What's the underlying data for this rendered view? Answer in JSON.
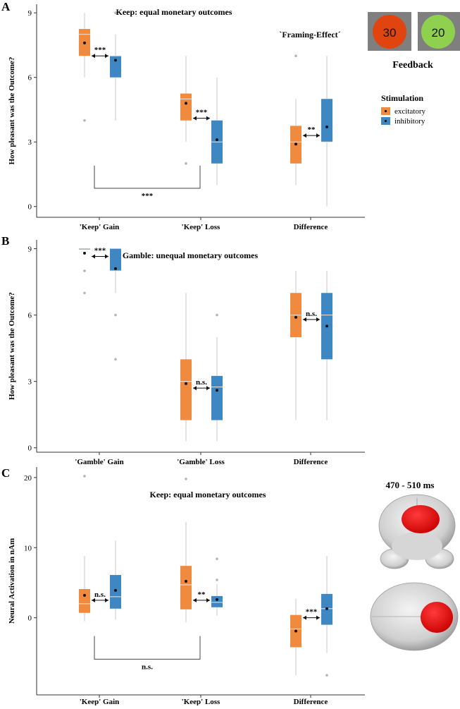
{
  "colors": {
    "excitatory": "#F08A3E",
    "inhibitory": "#3F87C2",
    "feedback_high": "#E0450F",
    "feedback_low": "#8FD14F",
    "feedback_frame": "#7F7F7F",
    "axis": "#333333",
    "outlier": "#B5B5B5"
  },
  "figure": {
    "feedback_label": "Feedback",
    "feedback_values": [
      "30",
      "20"
    ],
    "framing_effect_label": "`Framing-Effect´",
    "legend": {
      "title": "Stimulation",
      "items": [
        "excitatory",
        "inhibitory"
      ]
    },
    "brain_label": "470 - 510 ms"
  },
  "chart_data": [
    {
      "type": "box",
      "panel": "A",
      "title": "Keep: equal monetary outcomes",
      "ylabel": "How pleasant was the Outcome?",
      "ylim": [
        -0.5,
        9.4
      ],
      "yticks": [
        0,
        3,
        6,
        9
      ],
      "categories": [
        "'Keep' Gain",
        "'Keep' Loss",
        "Difference"
      ],
      "series": [
        {
          "name": "excitatory",
          "boxes": [
            {
              "q1": 7,
              "median": 8,
              "q3": 8.25,
              "wlo": 6,
              "whi": 9,
              "mean": 7.6,
              "outliers": [
                4
              ]
            },
            {
              "q1": 4,
              "median": 5,
              "q3": 5.25,
              "wlo": 3,
              "whi": 7,
              "mean": 4.8,
              "outliers": [
                2
              ]
            },
            {
              "q1": 2,
              "median": 3,
              "q3": 3.75,
              "wlo": 1,
              "whi": 5,
              "mean": 2.9,
              "outliers": [
                7
              ]
            }
          ]
        },
        {
          "name": "inhibitory",
          "boxes": [
            {
              "q1": 6,
              "median": 7,
              "q3": 7,
              "wlo": 4,
              "whi": 8,
              "mean": 6.8,
              "outliers": [
                9
              ]
            },
            {
              "q1": 2,
              "median": 3,
              "q3": 4,
              "wlo": 1,
              "whi": 6,
              "mean": 3.1,
              "outliers": []
            },
            {
              "q1": 3,
              "median": 3,
              "q3": 5,
              "wlo": 0,
              "whi": 7,
              "mean": 3.7,
              "outliers": []
            }
          ]
        }
      ],
      "comparisons": [
        {
          "category": 0,
          "label": "***",
          "y": 7
        },
        {
          "category": 1,
          "label": "***",
          "y": 4.1
        },
        {
          "category": 2,
          "label": "**",
          "y": 3.3
        }
      ],
      "bracket": {
        "from": 0,
        "to": 1,
        "label": "***",
        "top": 1.9,
        "bottom": 0.85
      }
    },
    {
      "type": "box",
      "panel": "B",
      "title": "Gamble: unequal monetary outcomes",
      "ylabel": "How pleasant was the Outcome?",
      "ylim": [
        -0.2,
        9.4
      ],
      "yticks": [
        0,
        3,
        6,
        9
      ],
      "categories": [
        "'Gamble' Gain",
        "'Gamble' Loss",
        "Difference"
      ],
      "series": [
        {
          "name": "excitatory",
          "boxes": [
            {
              "q1": 9,
              "median": 9,
              "q3": 9,
              "wlo": 9,
              "whi": 9,
              "mean": 8.8,
              "outliers": [
                8,
                7
              ]
            },
            {
              "q1": 1.25,
              "median": 3,
              "q3": 4,
              "wlo": 0.3,
              "whi": 7,
              "mean": 2.9,
              "outliers": []
            },
            {
              "q1": 5,
              "median": 6,
              "q3": 7,
              "wlo": 1.25,
              "whi": 8,
              "mean": 5.9,
              "outliers": []
            }
          ]
        },
        {
          "name": "inhibitory",
          "boxes": [
            {
              "q1": 8,
              "median": 8,
              "q3": 9,
              "wlo": 7,
              "whi": 9,
              "mean": 8.1,
              "outliers": [
                6,
                4
              ]
            },
            {
              "q1": 1.25,
              "median": 2.75,
              "q3": 3.25,
              "wlo": 0.3,
              "whi": 5,
              "mean": 2.6,
              "outliers": [
                6
              ]
            },
            {
              "q1": 4,
              "median": 6,
              "q3": 7,
              "wlo": 1.25,
              "whi": 8,
              "mean": 5.5,
              "outliers": []
            }
          ]
        }
      ],
      "comparisons": [
        {
          "category": 0,
          "label": "***",
          "y": 8.65
        },
        {
          "category": 1,
          "label": "n.s.",
          "y": 2.7
        },
        {
          "category": 2,
          "label": "n.s.",
          "y": 5.8
        }
      ]
    },
    {
      "type": "box",
      "panel": "C",
      "title": "Keep: equal monetary outcomes",
      "ylabel": "Neural Activation in nAm",
      "ylim": [
        -11,
        21.5
      ],
      "yticks": [
        0,
        10,
        20
      ],
      "categories": [
        "'Keep' Gain",
        "'Keep' Loss",
        "Difference"
      ],
      "series": [
        {
          "name": "excitatory",
          "boxes": [
            {
              "q1": 0.7,
              "median": 2,
              "q3": 4.1,
              "wlo": -0.5,
              "whi": 8.8,
              "mean": 3.2,
              "outliers": [
                20.2
              ]
            },
            {
              "q1": 1.2,
              "median": 4.7,
              "q3": 7.4,
              "wlo": -0.7,
              "whi": 13.7,
              "mean": 5.2,
              "outliers": [
                19.8
              ]
            },
            {
              "q1": -4.2,
              "median": -1.6,
              "q3": 0.4,
              "wlo": -8.2,
              "whi": 2.7,
              "mean": -1.9,
              "outliers": []
            }
          ]
        },
        {
          "name": "inhibitory",
          "boxes": [
            {
              "q1": 1.3,
              "median": 3,
              "q3": 6.1,
              "wlo": -0.3,
              "whi": 11,
              "mean": 3.9,
              "outliers": []
            },
            {
              "q1": 1.5,
              "median": 2.2,
              "q3": 3.1,
              "wlo": 0.3,
              "whi": 4.8,
              "mean": 2.6,
              "outliers": [
                5.4,
                8.4
              ]
            },
            {
              "q1": -1,
              "median": 1.3,
              "q3": 3.4,
              "wlo": -5,
              "whi": 8.8,
              "mean": 1.3,
              "outliers": [
                -8.2
              ]
            }
          ]
        }
      ],
      "comparisons": [
        {
          "category": 0,
          "label": "n.s.",
          "y": 2.5
        },
        {
          "category": 1,
          "label": "**",
          "y": 2.5
        },
        {
          "category": 2,
          "label": "***",
          "y": 0
        }
      ],
      "bracket": {
        "from": 0,
        "to": 1,
        "label": "n.s.",
        "top": -2.6,
        "bottom": -5.9
      }
    }
  ]
}
